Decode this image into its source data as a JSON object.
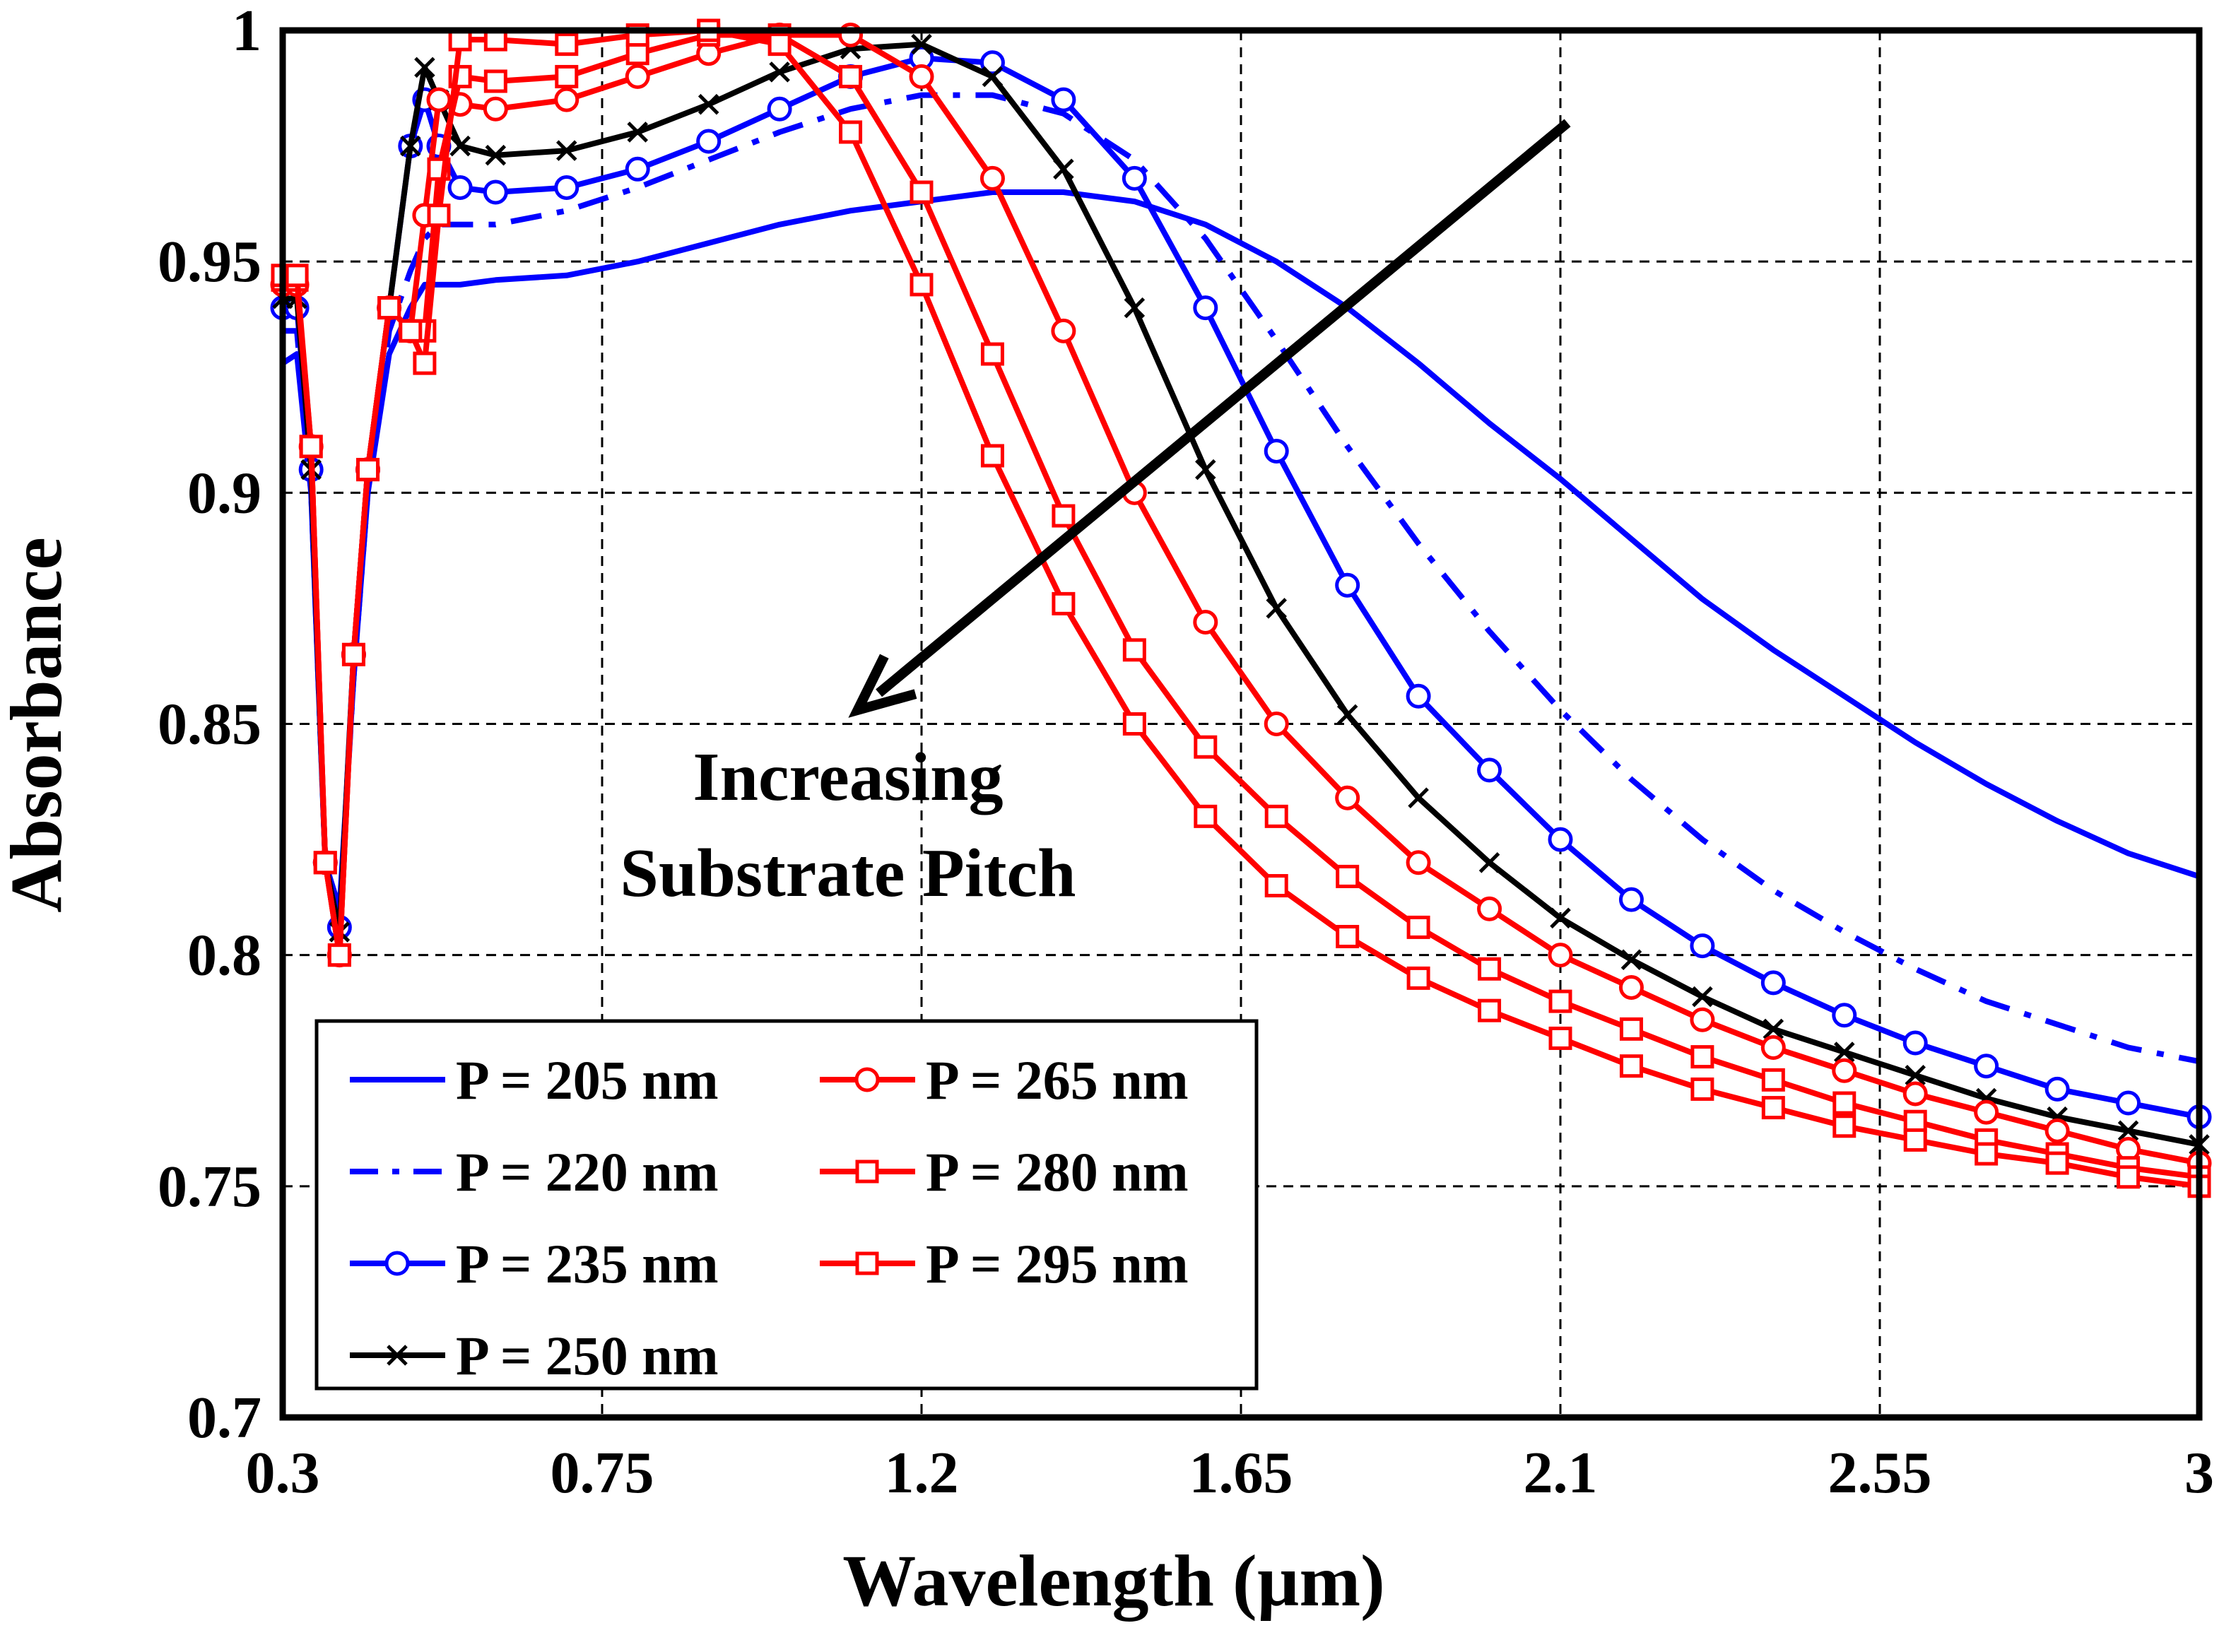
{
  "chart_data": {
    "type": "line",
    "title": "",
    "xlabel": "Wavelength (µm)",
    "ylabel": "Absorbance",
    "xlim": [
      0.3,
      3.0
    ],
    "ylim": [
      0.7,
      1.0
    ],
    "xticks": [
      "0.3",
      "0.75",
      "1.2",
      "1.65",
      "2.1",
      "2.55",
      "3"
    ],
    "yticks": [
      "0.7",
      "0.75",
      "0.8",
      "0.85",
      "0.9",
      "0.95",
      "1"
    ],
    "grid": true,
    "legend_position": "bottom-left",
    "annotation": {
      "lines": [
        "Increasing",
        "Substrate Pitch"
      ],
      "arrow_from": [
        2.11,
        0.98
      ],
      "arrow_to": [
        1.11,
        0.853
      ]
    },
    "series": [
      {
        "name": "P = 205 nm",
        "color": "#0000ff",
        "style": "solid",
        "marker": "none",
        "x": [
          0.3,
          0.32,
          0.34,
          0.36,
          0.38,
          0.4,
          0.42,
          0.45,
          0.48,
          0.5,
          0.52,
          0.55,
          0.6,
          0.7,
          0.8,
          0.9,
          1.0,
          1.1,
          1.2,
          1.3,
          1.4,
          1.5,
          1.6,
          1.7,
          1.8,
          1.9,
          2.0,
          2.1,
          2.2,
          2.3,
          2.4,
          2.5,
          2.6,
          2.7,
          2.8,
          2.9,
          3.0
        ],
        "y": [
          0.928,
          0.93,
          0.9,
          0.82,
          0.81,
          0.86,
          0.9,
          0.93,
          0.94,
          0.945,
          0.945,
          0.945,
          0.946,
          0.947,
          0.95,
          0.954,
          0.958,
          0.961,
          0.963,
          0.965,
          0.965,
          0.963,
          0.958,
          0.95,
          0.94,
          0.928,
          0.915,
          0.903,
          0.89,
          0.877,
          0.866,
          0.856,
          0.846,
          0.837,
          0.829,
          0.822,
          0.817
        ]
      },
      {
        "name": "P = 220 nm",
        "color": "#0000ff",
        "style": "dashdot",
        "marker": "none",
        "x": [
          0.3,
          0.32,
          0.34,
          0.36,
          0.38,
          0.4,
          0.42,
          0.45,
          0.48,
          0.5,
          0.52,
          0.55,
          0.6,
          0.7,
          0.8,
          0.9,
          1.0,
          1.1,
          1.2,
          1.3,
          1.4,
          1.5,
          1.6,
          1.7,
          1.8,
          1.9,
          2.0,
          2.1,
          2.2,
          2.3,
          2.4,
          2.5,
          2.6,
          2.7,
          2.8,
          2.9,
          3.0
        ],
        "y": [
          0.935,
          0.935,
          0.9,
          0.82,
          0.808,
          0.86,
          0.9,
          0.935,
          0.948,
          0.955,
          0.958,
          0.958,
          0.958,
          0.961,
          0.966,
          0.972,
          0.978,
          0.983,
          0.986,
          0.986,
          0.982,
          0.972,
          0.955,
          0.933,
          0.91,
          0.889,
          0.87,
          0.853,
          0.838,
          0.825,
          0.814,
          0.805,
          0.797,
          0.79,
          0.785,
          0.78,
          0.777
        ]
      },
      {
        "name": "P = 235 nm",
        "color": "#0000ff",
        "style": "solid",
        "marker": "circle",
        "x": [
          0.3,
          0.32,
          0.34,
          0.36,
          0.38,
          0.4,
          0.42,
          0.45,
          0.48,
          0.5,
          0.52,
          0.55,
          0.6,
          0.7,
          0.8,
          0.9,
          1.0,
          1.1,
          1.2,
          1.3,
          1.4,
          1.5,
          1.6,
          1.7,
          1.8,
          1.9,
          2.0,
          2.1,
          2.2,
          2.3,
          2.4,
          2.5,
          2.6,
          2.7,
          2.8,
          2.9,
          3.0
        ],
        "y": [
          0.94,
          0.94,
          0.905,
          0.82,
          0.806,
          0.865,
          0.905,
          0.94,
          0.975,
          0.985,
          0.975,
          0.966,
          0.965,
          0.966,
          0.97,
          0.976,
          0.983,
          0.99,
          0.994,
          0.993,
          0.985,
          0.968,
          0.94,
          0.909,
          0.88,
          0.856,
          0.84,
          0.825,
          0.812,
          0.802,
          0.794,
          0.787,
          0.781,
          0.776,
          0.771,
          0.768,
          0.765
        ]
      },
      {
        "name": "P = 250 nm",
        "color": "#000000",
        "style": "solid",
        "marker": "x",
        "x": [
          0.3,
          0.32,
          0.34,
          0.36,
          0.38,
          0.4,
          0.42,
          0.45,
          0.48,
          0.5,
          0.52,
          0.55,
          0.6,
          0.7,
          0.8,
          0.9,
          1.0,
          1.1,
          1.2,
          1.3,
          1.4,
          1.5,
          1.6,
          1.7,
          1.8,
          1.9,
          2.0,
          2.1,
          2.2,
          2.3,
          2.4,
          2.5,
          2.6,
          2.7,
          2.8,
          2.9,
          3.0
        ],
        "y": [
          0.942,
          0.942,
          0.905,
          0.82,
          0.805,
          0.865,
          0.905,
          0.94,
          0.975,
          0.992,
          0.985,
          0.975,
          0.973,
          0.974,
          0.978,
          0.984,
          0.991,
          0.996,
          0.997,
          0.99,
          0.97,
          0.94,
          0.905,
          0.875,
          0.852,
          0.834,
          0.82,
          0.808,
          0.799,
          0.791,
          0.784,
          0.779,
          0.774,
          0.769,
          0.765,
          0.762,
          0.759
        ]
      },
      {
        "name": "P = 265 nm",
        "color": "#ff0000",
        "style": "solid",
        "marker": "circle",
        "x": [
          0.3,
          0.32,
          0.34,
          0.36,
          0.38,
          0.4,
          0.42,
          0.45,
          0.48,
          0.5,
          0.52,
          0.55,
          0.6,
          0.7,
          0.8,
          0.9,
          1.0,
          1.1,
          1.2,
          1.3,
          1.4,
          1.5,
          1.6,
          1.7,
          1.8,
          1.9,
          2.0,
          2.1,
          2.2,
          2.3,
          2.4,
          2.5,
          2.6,
          2.7,
          2.8,
          2.9,
          3.0
        ],
        "y": [
          0.945,
          0.945,
          0.91,
          0.82,
          0.8,
          0.865,
          0.905,
          0.94,
          0.935,
          0.96,
          0.985,
          0.984,
          0.983,
          0.985,
          0.99,
          0.995,
          0.999,
          0.999,
          0.99,
          0.968,
          0.935,
          0.9,
          0.872,
          0.85,
          0.834,
          0.82,
          0.81,
          0.8,
          0.793,
          0.786,
          0.78,
          0.775,
          0.77,
          0.766,
          0.762,
          0.758,
          0.755
        ]
      },
      {
        "name": "P = 280 nm",
        "color": "#ff0000",
        "style": "solid",
        "marker": "square",
        "x": [
          0.3,
          0.32,
          0.34,
          0.36,
          0.38,
          0.4,
          0.42,
          0.45,
          0.48,
          0.5,
          0.52,
          0.55,
          0.6,
          0.7,
          0.8,
          0.9,
          1.0,
          1.1,
          1.2,
          1.3,
          1.4,
          1.5,
          1.6,
          1.7,
          1.8,
          1.9,
          2.0,
          2.1,
          2.2,
          2.3,
          2.4,
          2.5,
          2.6,
          2.7,
          2.8,
          2.9,
          3.0
        ],
        "y": [
          0.946,
          0.946,
          0.91,
          0.82,
          0.8,
          0.865,
          0.905,
          0.94,
          0.935,
          0.935,
          0.97,
          0.99,
          0.989,
          0.99,
          0.995,
          0.999,
          0.999,
          0.99,
          0.965,
          0.93,
          0.895,
          0.866,
          0.845,
          0.83,
          0.817,
          0.806,
          0.797,
          0.79,
          0.784,
          0.778,
          0.773,
          0.768,
          0.764,
          0.76,
          0.757,
          0.754,
          0.752
        ]
      },
      {
        "name": "P = 295 nm",
        "color": "#ff0000",
        "style": "solid",
        "marker": "square",
        "x": [
          0.3,
          0.32,
          0.34,
          0.36,
          0.38,
          0.4,
          0.42,
          0.45,
          0.48,
          0.5,
          0.52,
          0.55,
          0.6,
          0.7,
          0.8,
          0.9,
          1.0,
          1.1,
          1.2,
          1.3,
          1.4,
          1.5,
          1.6,
          1.7,
          1.8,
          1.9,
          2.0,
          2.1,
          2.2,
          2.3,
          2.4,
          2.5,
          2.6,
          2.7,
          2.8,
          2.9,
          3.0
        ],
        "y": [
          0.947,
          0.947,
          0.91,
          0.82,
          0.8,
          0.865,
          0.905,
          0.94,
          0.935,
          0.928,
          0.96,
          0.998,
          0.998,
          0.997,
          0.999,
          1.0,
          0.997,
          0.978,
          0.945,
          0.908,
          0.876,
          0.85,
          0.83,
          0.815,
          0.804,
          0.795,
          0.788,
          0.782,
          0.776,
          0.771,
          0.767,
          0.763,
          0.76,
          0.757,
          0.755,
          0.752,
          0.75
        ]
      }
    ]
  }
}
